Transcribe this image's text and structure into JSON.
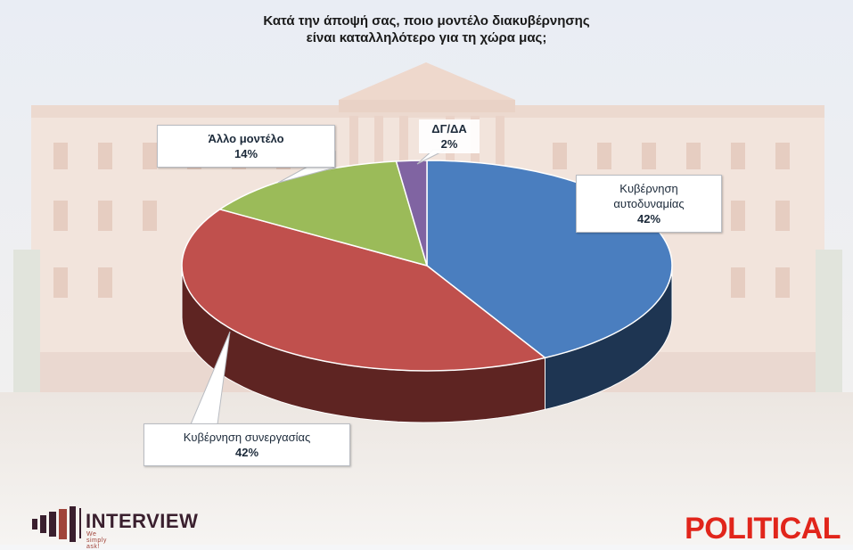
{
  "chart_data": {
    "type": "pie",
    "title_lines": [
      "Κατά την άποψή σας, ποιο μοντέλο διακυβέρνησης",
      "είναι καταλληλότερο για τη χώρα μας;"
    ],
    "slices": [
      {
        "name": "Κυβέρνηση αυτοδυναμίας",
        "label_lines": [
          "Κυβέρνηση",
          "αυτοδυναμίας"
        ],
        "value": 42,
        "label": "42%",
        "color": "#4a7ebf",
        "side": "#1e3552"
      },
      {
        "name": "Κυβέρνηση συνεργασίας",
        "label_lines": [
          "Κυβέρνηση συνεργασίας"
        ],
        "value": 42,
        "label": "42%",
        "color": "#c0504d",
        "side": "#5e2422"
      },
      {
        "name": "Άλλο μοντέλο",
        "label_lines": [
          "Άλλο μοντέλο"
        ],
        "value": 14,
        "label": "14%",
        "color": "#9bbb59",
        "side": "#4a5c28"
      },
      {
        "name": "ΔΓ/ΔΑ",
        "label_lines": [
          "ΔΓ/ΔΑ"
        ],
        "value": 2,
        "label": "2%",
        "color": "#8064a2",
        "side": "#3d2e50"
      }
    ]
  },
  "branding": {
    "left_brand": "INTERVIEW",
    "left_tagline": "We simply ask!",
    "right_brand": "POLITICAL",
    "right_color": "#e1251b"
  }
}
